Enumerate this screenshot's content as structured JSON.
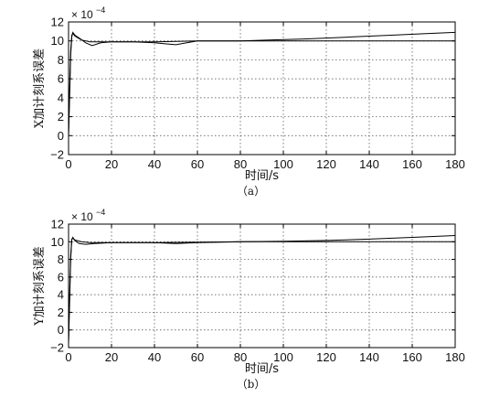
{
  "chart_data": [
    {
      "type": "line",
      "panel_label": "（a）",
      "xlabel": "时间/s",
      "ylabel": "X加计刻系误差",
      "scale_multiplier": "× 10",
      "scale_exponent": "−4",
      "xlim": [
        0,
        180
      ],
      "ylim": [
        -2,
        12
      ],
      "x_ticks": [
        0,
        20,
        40,
        60,
        80,
        100,
        120,
        140,
        160,
        180
      ],
      "y_ticks": [
        -2,
        0,
        2,
        4,
        6,
        8,
        10,
        12
      ],
      "grid": true,
      "series": [
        {
          "color": "#000000",
          "points": [
            [
              0,
              0
            ],
            [
              0.5,
              4
            ],
            [
              1,
              8.5
            ],
            [
              1.5,
              10.4
            ],
            [
              2,
              10.9
            ],
            [
              3,
              10.6
            ],
            [
              5,
              10.3
            ],
            [
              8,
              9.8
            ],
            [
              11,
              9.5
            ],
            [
              15,
              9.8
            ],
            [
              20,
              9.9
            ],
            [
              30,
              9.9
            ],
            [
              40,
              9.8
            ],
            [
              45,
              9.7
            ],
            [
              50,
              9.6
            ],
            [
              55,
              9.8
            ],
            [
              60,
              10
            ],
            [
              80,
              10
            ],
            [
              100,
              10
            ],
            [
              120,
              10
            ],
            [
              140,
              10
            ],
            [
              160,
              10
            ],
            [
              180,
              10
            ]
          ]
        },
        {
          "color": "#000000",
          "points": [
            [
              0,
              0
            ],
            [
              0.5,
              5
            ],
            [
              1,
              9
            ],
            [
              1.5,
              10.6
            ],
            [
              2,
              10.8
            ],
            [
              3,
              10.5
            ],
            [
              6,
              10.1
            ],
            [
              10,
              9.9
            ],
            [
              20,
              9.9
            ],
            [
              40,
              9.9
            ],
            [
              60,
              10
            ],
            [
              80,
              10
            ],
            [
              95,
              10.1
            ],
            [
              110,
              10.2
            ],
            [
              130,
              10.4
            ],
            [
              150,
              10.6
            ],
            [
              170,
              10.8
            ],
            [
              180,
              10.9
            ]
          ]
        }
      ]
    },
    {
      "type": "line",
      "panel_label": "（b）",
      "xlabel": "时间/s",
      "ylabel": "Y加计刻系误差",
      "scale_multiplier": "× 10",
      "scale_exponent": "−4",
      "xlim": [
        0,
        180
      ],
      "ylim": [
        -2,
        12
      ],
      "x_ticks": [
        0,
        20,
        40,
        60,
        80,
        100,
        120,
        140,
        160,
        180
      ],
      "y_ticks": [
        -2,
        0,
        2,
        4,
        6,
        8,
        10,
        12
      ],
      "grid": true,
      "series": [
        {
          "color": "#000000",
          "points": [
            [
              0,
              -1.5
            ],
            [
              0.5,
              3
            ],
            [
              1,
              8
            ],
            [
              1.5,
              10.2
            ],
            [
              2,
              10.5
            ],
            [
              3,
              10.1
            ],
            [
              5,
              9.8
            ],
            [
              8,
              9.7
            ],
            [
              12,
              9.8
            ],
            [
              20,
              9.9
            ],
            [
              40,
              9.9
            ],
            [
              50,
              9.8
            ],
            [
              60,
              9.9
            ],
            [
              80,
              10
            ],
            [
              100,
              10
            ],
            [
              120,
              10
            ],
            [
              140,
              10
            ],
            [
              160,
              10
            ],
            [
              180,
              10
            ]
          ]
        },
        {
          "color": "#000000",
          "points": [
            [
              0,
              -1.5
            ],
            [
              0.5,
              4
            ],
            [
              1,
              8.5
            ],
            [
              1.5,
              10.3
            ],
            [
              2,
              10.4
            ],
            [
              3,
              10.2
            ],
            [
              6,
              10
            ],
            [
              10,
              9.9
            ],
            [
              20,
              9.9
            ],
            [
              40,
              9.9
            ],
            [
              60,
              9.95
            ],
            [
              80,
              10
            ],
            [
              100,
              10.05
            ],
            [
              120,
              10.15
            ],
            [
              140,
              10.3
            ],
            [
              160,
              10.5
            ],
            [
              180,
              10.7
            ]
          ]
        }
      ]
    }
  ]
}
